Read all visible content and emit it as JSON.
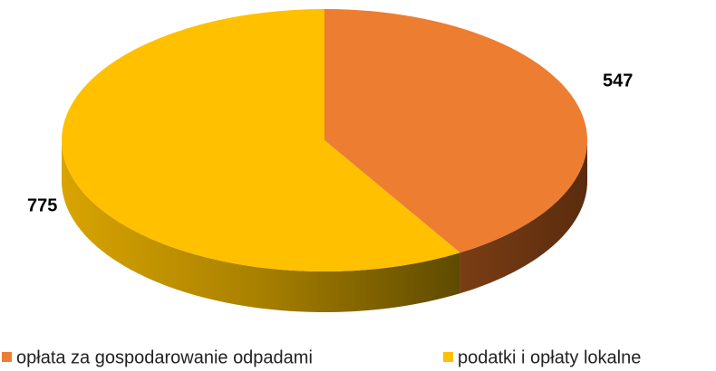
{
  "chart_data": {
    "type": "pie",
    "categories": [
      "opłata za gospodarowanie odpadami",
      "podatki i opłaty lokalne"
    ],
    "values": [
      547,
      775
    ],
    "colors": [
      "#ed7d31",
      "#ffc000"
    ],
    "legend": "bottom"
  }
}
